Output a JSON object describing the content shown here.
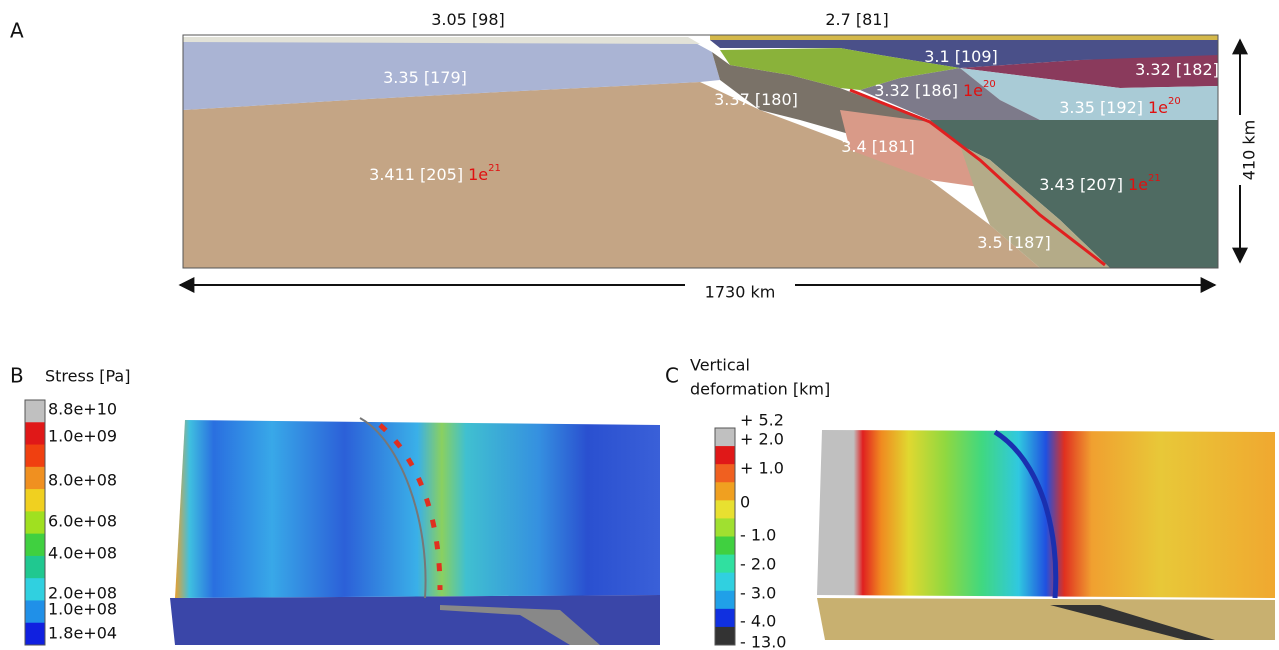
{
  "panel_a": {
    "label": "A",
    "layers": [
      {
        "text": "3.05 [98]"
      },
      {
        "text": "2.7 [81]"
      },
      {
        "text": "3.1 [109]"
      },
      {
        "text": "3.35 [179]"
      },
      {
        "text": "3.32 [182]"
      },
      {
        "text": "3.37 [180]"
      },
      {
        "text": "3.32 [186]",
        "viscosity": {
          "base": "1e",
          "exponent": "20"
        }
      },
      {
        "text": "3.35 [192]",
        "viscosity": {
          "base": "1e",
          "exponent": "20"
        }
      },
      {
        "text": "3.4 [181]"
      },
      {
        "text": "3.411 [205]",
        "viscosity": {
          "base": "1e",
          "exponent": "21"
        }
      },
      {
        "text": "3.43 [207]",
        "viscosity": {
          "base": "1e",
          "exponent": "21"
        }
      },
      {
        "text": "3.5 [187]"
      }
    ],
    "depth": "410 km",
    "width": "1730 km"
  },
  "panel_b": {
    "label": "B",
    "title": "Stress [Pa]",
    "colorbar": [
      "8.8e+10",
      "1.0e+09",
      "8.0e+08",
      "6.0e+08",
      "4.0e+08",
      "2.0e+08",
      "1.0e+08",
      "1.8e+04"
    ]
  },
  "panel_c": {
    "label": "C",
    "title": [
      "Vertical",
      "deformation [km]"
    ],
    "colorbar": [
      "+ 5.2",
      "+ 2.0",
      "+ 1.0",
      "0",
      "- 1.0",
      "- 2.0",
      "- 3.0",
      "- 4.0",
      "- 13.0"
    ]
  }
}
